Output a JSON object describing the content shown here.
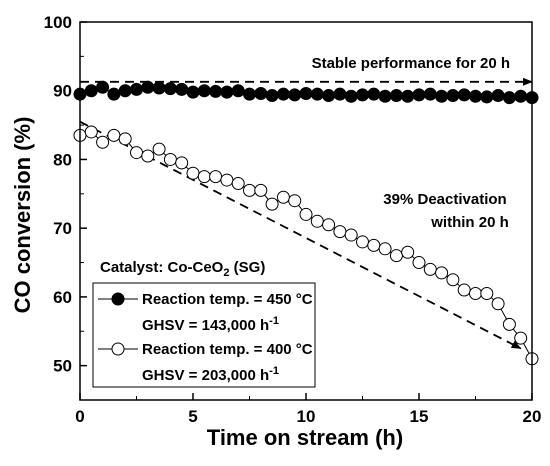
{
  "chart_data": {
    "type": "scatter",
    "xlabel": "Time on stream (h)",
    "ylabel": "CO conversion (%)",
    "xlim": [
      0,
      20
    ],
    "ylim": [
      45,
      100
    ],
    "xticks": [
      0,
      5,
      10,
      15,
      20
    ],
    "yticks": [
      50,
      60,
      70,
      80,
      90,
      100
    ],
    "grid": false,
    "legend_position": "bottom-left",
    "legend_title": {
      "prefix": "Catalyst: Co-CeO",
      "sub": "2",
      "suffix": " (SG)"
    },
    "series": [
      {
        "name": "Reaction temp. = 450 °C",
        "name_line2": {
          "base": "GHSV = 143,000 h",
          "sup": "-1"
        },
        "marker": "filled-circle",
        "x": [
          0,
          0.5,
          1,
          1.5,
          2,
          2.5,
          3,
          3.5,
          4,
          4.5,
          5,
          5.5,
          6,
          6.5,
          7,
          7.5,
          8,
          8.5,
          9,
          9.5,
          10,
          10.5,
          11,
          11.5,
          12,
          12.5,
          13,
          13.5,
          14,
          14.5,
          15,
          15.5,
          16,
          16.5,
          17,
          17.5,
          18,
          18.5,
          19,
          19.5,
          20
        ],
        "y": [
          89.5,
          90,
          90.5,
          89.5,
          90,
          90.2,
          90.5,
          90.4,
          90.3,
          90.2,
          89.8,
          90,
          89.9,
          89.8,
          90,
          89.5,
          89.6,
          89.3,
          89.5,
          89.4,
          89.6,
          89.5,
          89.3,
          89.5,
          89.2,
          89.4,
          89.5,
          89.2,
          89.3,
          89.2,
          89.4,
          89.5,
          89.2,
          89.3,
          89.4,
          89.2,
          89.1,
          89.3,
          89,
          89.2,
          89
        ]
      },
      {
        "name": "Reaction temp. = 400 °C",
        "name_line2": {
          "base": "GHSV = 203,000 h",
          "sup": "-1"
        },
        "marker": "open-circle",
        "x": [
          0,
          0.5,
          1,
          1.5,
          2,
          2.5,
          3,
          3.5,
          4,
          4.5,
          5,
          5.5,
          6,
          6.5,
          7,
          7.5,
          8,
          8.5,
          9,
          9.5,
          10,
          10.5,
          11,
          11.5,
          12,
          12.5,
          13,
          13.5,
          14,
          14.5,
          15,
          15.5,
          16,
          16.5,
          17,
          17.5,
          18,
          18.5,
          19,
          19.5,
          20
        ],
        "y": [
          83.5,
          84,
          82.5,
          83.5,
          83,
          81,
          80.5,
          81.5,
          80,
          79.5,
          78,
          77.5,
          77.5,
          77,
          76.5,
          75.5,
          75.5,
          73.5,
          74.5,
          74,
          72,
          71,
          70.5,
          69.5,
          69,
          68,
          67.5,
          67,
          66,
          66.5,
          65,
          64,
          63.5,
          62.5,
          61,
          60.5,
          60.5,
          59,
          56,
          54,
          51
        ]
      }
    ],
    "trend_lines": [
      {
        "x": [
          0,
          20
        ],
        "y": [
          91.3,
          91.3
        ]
      },
      {
        "x": [
          0,
          19.5
        ],
        "y": [
          85.5,
          52.5
        ]
      }
    ],
    "annotations": [
      {
        "text": "Stable performance for 20 h"
      },
      {
        "text": "39% Deactivation"
      },
      {
        "text": "within 20 h"
      }
    ]
  }
}
